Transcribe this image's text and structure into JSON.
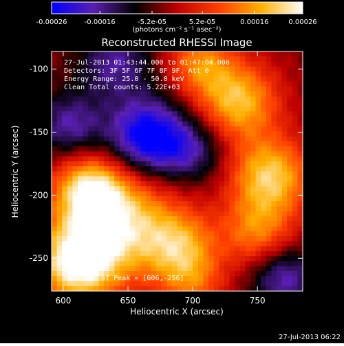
{
  "colors": {
    "background": "#000000",
    "text": "#ffffff",
    "frame": "#ffffff"
  },
  "colorbar": {
    "ticks": [
      "-0.00026",
      "-0.00016",
      "-5.2e-05",
      "5.2e-05",
      "0.00016",
      "0.00026"
    ],
    "tick_values": [
      -0.00026,
      -0.00016,
      -5.2e-05,
      5.2e-05,
      0.00016,
      0.00026
    ],
    "range": [
      -0.00026,
      0.00026
    ],
    "units_label": "(photons cm⁻² s⁻¹ asec⁻²)",
    "colormap": [
      "#0000ff",
      "#5a1fb0",
      "#000000",
      "#c00000",
      "#ff4000",
      "#ffb000",
      "#ffffff"
    ]
  },
  "chart_data": {
    "type": "heatmap",
    "title": "Reconstructed RHESSI Image",
    "xlabel": "Heliocentric X (arcsec)",
    "ylabel": "Heliocentric Y (arcsec)",
    "xlim": [
      591,
      785
    ],
    "ylim": [
      -276,
      -86
    ],
    "x_ticks": [
      600,
      650,
      700,
      750
    ],
    "y_ticks": [
      -100,
      -150,
      -200,
      -250
    ],
    "annotations": {
      "time_range": "27-Jul-2013 01:43:44.000 to 01:47:04.000",
      "detectors": "Detectors: 3F 5F 6F 7F 8F 9F, Att 0",
      "energy_range": "Energy Range: 25.0 - 50.0 keV",
      "clean_counts": "Clean    Total counts: 5.22E+03",
      "peak_position": "Position of Peak = [606,-256]"
    },
    "peak": {
      "x": 606,
      "y": -256
    },
    "features": [
      {
        "x": 640,
        "y": -220,
        "intensity": 1.0,
        "spread": 32
      },
      {
        "x": 610,
        "y": -255,
        "intensity": 1.0,
        "spread": 22
      },
      {
        "x": 620,
        "y": -195,
        "intensity": 0.7,
        "spread": 18
      },
      {
        "x": 690,
        "y": -240,
        "intensity": 0.65,
        "spread": 20
      },
      {
        "x": 705,
        "y": -95,
        "intensity": 0.6,
        "spread": 18
      },
      {
        "x": 735,
        "y": -125,
        "intensity": 0.85,
        "spread": 22
      },
      {
        "x": 760,
        "y": -185,
        "intensity": 0.9,
        "spread": 22
      },
      {
        "x": 750,
        "y": -230,
        "intensity": 0.6,
        "spread": 20
      },
      {
        "x": 700,
        "y": -270,
        "intensity": 0.45,
        "spread": 18
      },
      {
        "x": 665,
        "y": -155,
        "intensity": -1.0,
        "spread": 22
      },
      {
        "x": 605,
        "y": -145,
        "intensity": -0.55,
        "spread": 18
      },
      {
        "x": 770,
        "y": -265,
        "intensity": -0.6,
        "spread": 18
      },
      {
        "x": 640,
        "y": -95,
        "intensity": -0.5,
        "spread": 20
      },
      {
        "x": 700,
        "y": -165,
        "intensity": -0.45,
        "spread": 18
      }
    ]
  },
  "footer": {
    "timestamp": "27-Jul-2013 06:22"
  }
}
